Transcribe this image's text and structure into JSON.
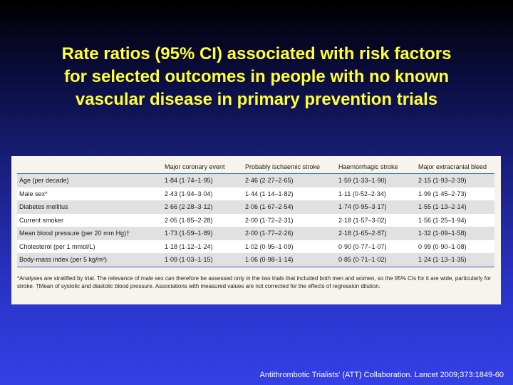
{
  "slide": {
    "title_lines": [
      "Rate ratios (95% CI) associated with risk factors",
      "for selected outcomes in people with no known",
      "vascular disease in primary prevention trials"
    ],
    "citation": "Antithrombotic Trialists' (ATT) Collaboration. Lancet 2009;373:1849-60",
    "colors": {
      "title": "#ffff33",
      "header_rule": "#2b6fae",
      "shaded_row": "#e1e1e4"
    }
  },
  "table": {
    "headers": [
      "",
      "Major coronary event",
      "Probably ischaemic stroke",
      "Haemorrhagic stroke",
      "Major extracranial bleed"
    ],
    "rows": [
      {
        "factor": "Age (per decade)",
        "values": [
          "1·84 (1·74–1·95)",
          "2·46 (2·27–2·65)",
          "1·59 (1·33–1·90)",
          "2·15 (1·93–2·39)"
        ]
      },
      {
        "factor": "Male sex*",
        "values": [
          "2·43 (1·94–3·04)",
          "1·44 (1·14–1·82)",
          "1·11 (0·52–2·34)",
          "1·99 (1·45–2·73)"
        ]
      },
      {
        "factor": "Diabetes mellitus",
        "values": [
          "2·66 (2·28–3·12)",
          "2·06 (1·67–2·54)",
          "1·74 (0·95–3·17)",
          "1·55 (1·13–2·14)"
        ]
      },
      {
        "factor": "Current smoker",
        "values": [
          "2·05 (1·85–2·28)",
          "2·00 (1·72–2·31)",
          "2·18 (1·57–3·02)",
          "1·56 (1·25–1·94)"
        ]
      },
      {
        "factor": "Mean blood pressure (per 20 mm Hg)†",
        "values": [
          "1·73 (1·59–1·89)",
          "2·00 (1·77–2·26)",
          "2·18 (1·65–2·87)",
          "1·32 (1·09–1·58)"
        ]
      },
      {
        "factor": "Cholesterol (per 1 mmol/L)",
        "values": [
          "1·18 (1·12–1·24)",
          "1·02 (0·95–1·09)",
          "0·90 (0·77–1·07)",
          "0·99 (0·90–1·08)"
        ]
      },
      {
        "factor": "Body-mass index (per 5 kg/m²)",
        "values": [
          "1·09 (1·03–1·15)",
          "1·06 (0·98–1·14)",
          "0·85 (0·71–1·02)",
          "1·24 (1·13–1·35)"
        ]
      }
    ],
    "footnote": "*Analyses are stratified by trial. The relevance of male sex can therefore be assessed only in the two trials that included both men and women, so the 95% CIs for it are wide, particularly for stroke. †Mean of systolic and diastolic blood pressure. Associations with measured values are not corrected for the effects of regression dilution."
  }
}
